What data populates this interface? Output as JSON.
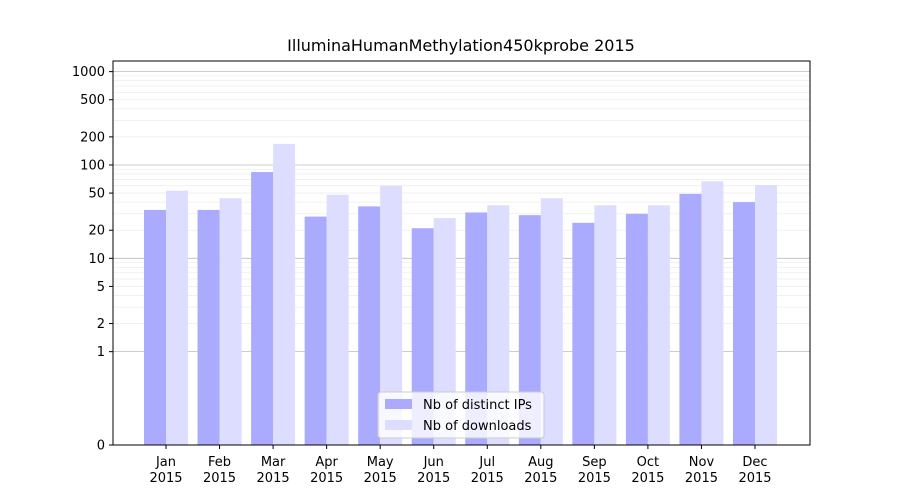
{
  "chart_data": {
    "type": "bar",
    "title": "IlluminaHumanMethylation450kprobe 2015",
    "scale": "symlog",
    "grid": true,
    "legend_position": "lower-center",
    "categories": [
      [
        "Jan",
        "2015"
      ],
      [
        "Feb",
        "2015"
      ],
      [
        "Mar",
        "2015"
      ],
      [
        "Apr",
        "2015"
      ],
      [
        "May",
        "2015"
      ],
      [
        "Jun",
        "2015"
      ],
      [
        "Jul",
        "2015"
      ],
      [
        "Aug",
        "2015"
      ],
      [
        "Sep",
        "2015"
      ],
      [
        "Oct",
        "2015"
      ],
      [
        "Nov",
        "2015"
      ],
      [
        "Dec",
        "2015"
      ]
    ],
    "series": [
      {
        "name": "Nb of distinct IPs",
        "color": "#aaaaff",
        "values": [
          33,
          33,
          84,
          28,
          36,
          21,
          31,
          29,
          24,
          30,
          49,
          40
        ]
      },
      {
        "name": "Nb of downloads",
        "color": "#ddddff",
        "values": [
          53,
          44,
          168,
          48,
          60,
          27,
          37,
          44,
          37,
          37,
          67,
          61
        ]
      }
    ],
    "yticks": [
      "0",
      "1",
      "2",
      "5",
      "10",
      "20",
      "50",
      "100",
      "200",
      "500",
      "1000"
    ],
    "ylim": [
      0,
      1300
    ]
  }
}
